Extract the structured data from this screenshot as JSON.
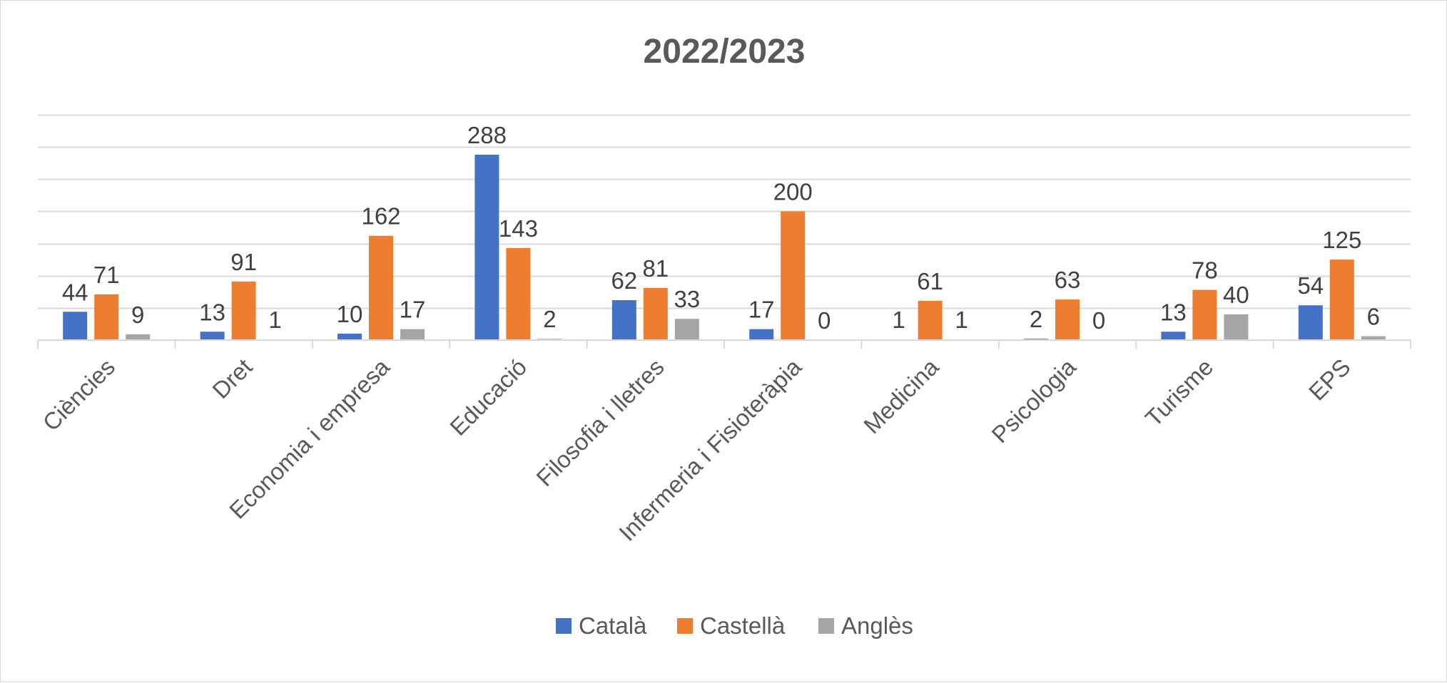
{
  "chart_data": {
    "type": "bar",
    "title": "2022/2023",
    "categories": [
      "Ciències",
      "Dret",
      "Economia i empresa",
      "Educació",
      "Filosofia i lletres",
      "Infermeria i Fisioteràpia",
      "Medicina",
      "Psicologia",
      "Turisme",
      "EPS"
    ],
    "series": [
      {
        "name": "Català",
        "color": "#4472C4",
        "values": [
          44,
          13,
          10,
          288,
          62,
          17,
          1,
          2,
          13,
          54
        ]
      },
      {
        "name": "Castellà",
        "color": "#ED7D31",
        "values": [
          71,
          91,
          162,
          143,
          81,
          200,
          61,
          63,
          78,
          125
        ]
      },
      {
        "name": "Anglès",
        "color": "#A5A5A5",
        "values": [
          9,
          1,
          17,
          2,
          33,
          0,
          1,
          0,
          40,
          6
        ]
      }
    ],
    "ylim": [
      0,
      350
    ],
    "grid": true,
    "legend": "bottom",
    "data_labels": true
  }
}
